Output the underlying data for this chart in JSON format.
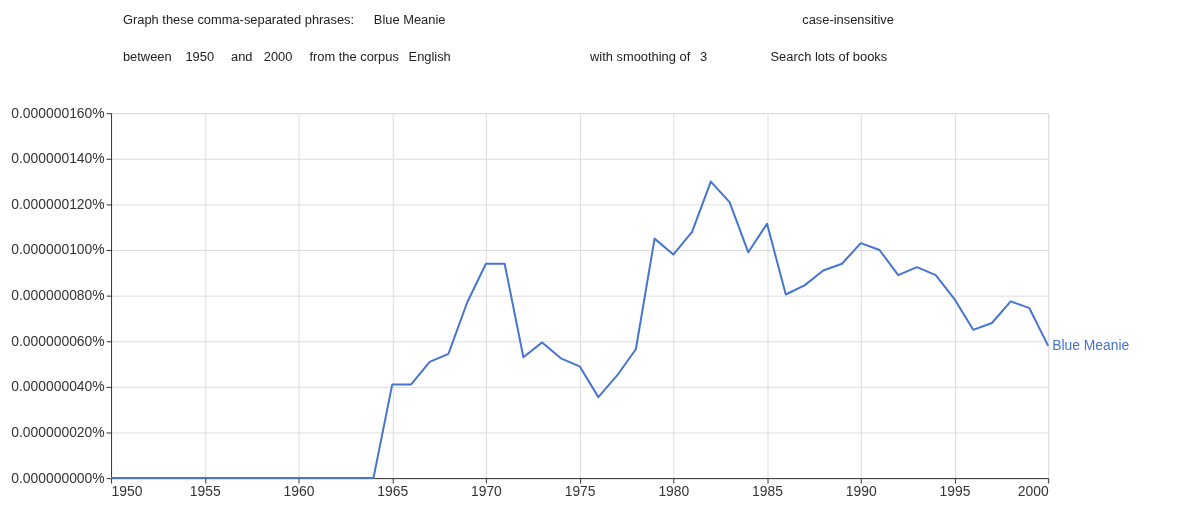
{
  "chart_data": {
    "type": "line",
    "annotations": [
      "Graph these comma-separated phrases:",
      "Blue Meanie",
      "case-insensitive",
      "between",
      "1950",
      "and",
      "2000",
      "from the corpus",
      "English",
      "with smoothing of",
      "3",
      "Search lots of books"
    ],
    "x": [
      1950,
      1951,
      1952,
      1953,
      1954,
      1955,
      1956,
      1957,
      1958,
      1959,
      1960,
      1961,
      1962,
      1963,
      1964,
      1965,
      1966,
      1967,
      1968,
      1969,
      1970,
      1971,
      1972,
      1973,
      1974,
      1975,
      1976,
      1977,
      1978,
      1979,
      1980,
      1981,
      1982,
      1983,
      1984,
      1985,
      1986,
      1987,
      1988,
      1989,
      1990,
      1991,
      1992,
      1993,
      1994,
      1995,
      1996,
      1997,
      1998,
      1999,
      2000
    ],
    "series": [
      {
        "name": "Blue Meanie",
        "color": "#4674d1",
        "values": [
          0,
          0,
          0,
          0,
          0,
          0,
          0,
          0,
          0,
          0,
          0,
          0,
          0,
          0,
          0,
          4.1e-08,
          4.1e-08,
          5.1e-08,
          5.45e-08,
          7.7e-08,
          9.4e-08,
          9.4e-08,
          5.3e-08,
          5.95e-08,
          5.25e-08,
          4.9e-08,
          3.55e-08,
          4.5e-08,
          5.65e-08,
          1.05e-07,
          9.8e-08,
          1.08e-07,
          1.3e-07,
          1.21e-07,
          9.9e-08,
          1.115e-07,
          8.05e-08,
          8.45e-08,
          9.1e-08,
          9.4e-08,
          1.03e-07,
          1e-07,
          8.9e-08,
          9.25e-08,
          8.9e-08,
          7.85e-08,
          6.5e-08,
          6.8e-08,
          7.75e-08,
          7.45e-08,
          5.8e-08
        ]
      }
    ],
    "xlim": [
      1950,
      2000
    ],
    "xticks": [
      1950,
      1955,
      1960,
      1965,
      1970,
      1975,
      1980,
      1985,
      1990,
      1995,
      2000
    ],
    "ylim": [
      0,
      1.6e-07
    ],
    "yticks": [
      {
        "value": 0,
        "label": "0.000000000%"
      },
      {
        "value": 2e-08,
        "label": "0.000000020%"
      },
      {
        "value": 4e-08,
        "label": "0.000000040%"
      },
      {
        "value": 6e-08,
        "label": "0.000000060%"
      },
      {
        "value": 8e-08,
        "label": "0.000000080%"
      },
      {
        "value": 1e-07,
        "label": "0.000000100%"
      },
      {
        "value": 1.2e-07,
        "label": "0.000000120%"
      },
      {
        "value": 1.4e-07,
        "label": "0.000000140%"
      },
      {
        "value": 1.6e-07,
        "label": "0.000000160%"
      }
    ],
    "grid": true,
    "legend": false,
    "marker": "none",
    "line_style": "solid"
  }
}
